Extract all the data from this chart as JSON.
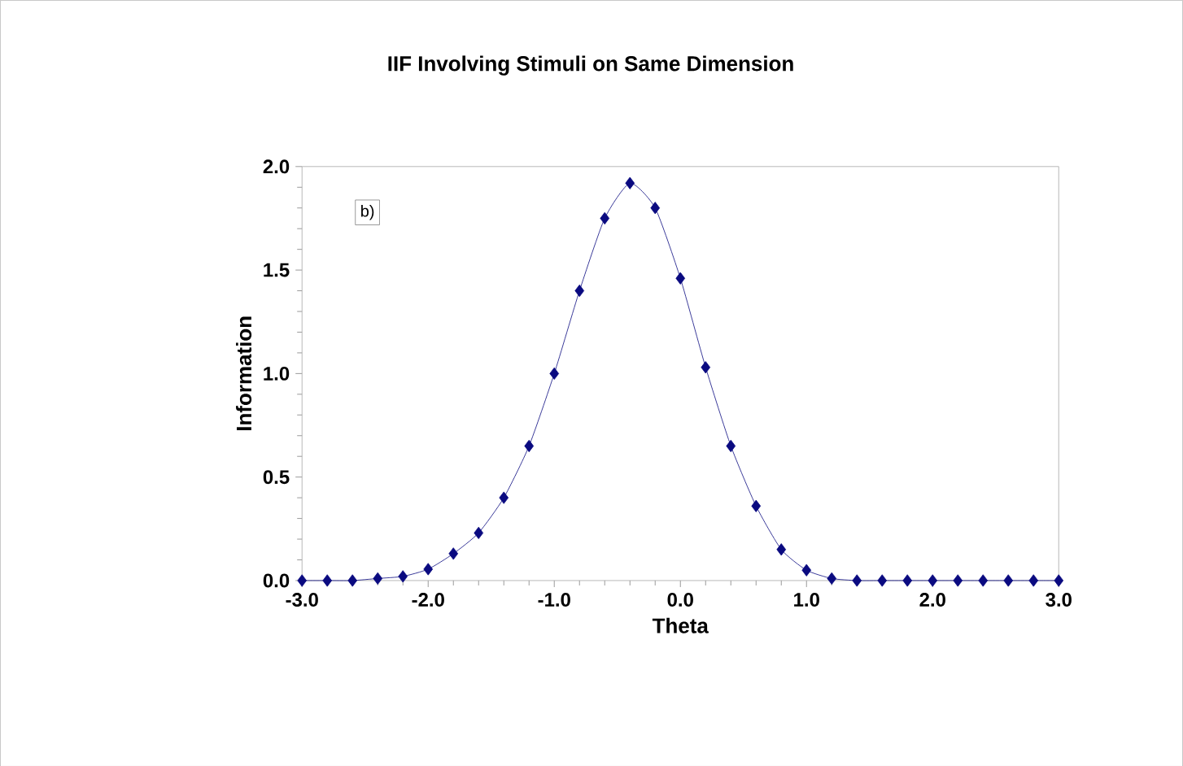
{
  "chart_data": {
    "type": "line",
    "title": "IIF Involving Stimuli on Same Dimension",
    "xlabel": "Theta",
    "ylabel": "Information",
    "annotations": [
      "b)"
    ],
    "x": [
      -3.0,
      -2.8,
      -2.6,
      -2.4,
      -2.2,
      -2.0,
      -1.8,
      -1.6,
      -1.4,
      -1.2,
      -1.0,
      -0.8,
      -0.6,
      -0.4,
      -0.2,
      0.0,
      0.2,
      0.4,
      0.6,
      0.8,
      1.0,
      1.2,
      1.4,
      1.6,
      1.8,
      2.0,
      2.2,
      2.4,
      2.6,
      2.8,
      3.0
    ],
    "series": [
      {
        "color": "#0a0a80",
        "values": [
          0,
          0,
          0,
          0.01,
          0.02,
          0.055,
          0.13,
          0.23,
          0.4,
          0.65,
          1.0,
          1.4,
          1.75,
          1.92,
          1.8,
          1.46,
          1.03,
          0.65,
          0.36,
          0.15,
          0.05,
          0.01,
          0,
          0,
          0,
          0,
          0,
          0,
          0,
          0,
          0
        ]
      }
    ],
    "xlim": [
      -3.0,
      3.0
    ],
    "ylim": [
      0,
      2.0
    ],
    "xticks": [
      {
        "value": -3,
        "label": "-3.0"
      },
      {
        "value": -2,
        "label": "-2.0"
      },
      {
        "value": -1,
        "label": "-1.0"
      },
      {
        "value": 0,
        "label": "0.0"
      },
      {
        "value": 1,
        "label": "1.0"
      },
      {
        "value": 2,
        "label": "2.0"
      },
      {
        "value": 3,
        "label": "3.0"
      }
    ],
    "yticks": [
      {
        "value": 0,
        "label": "0.0"
      },
      {
        "value": 0.5,
        "label": "0.5"
      },
      {
        "value": 1,
        "label": "1.0"
      },
      {
        "value": 1.5,
        "label": "1.5"
      },
      {
        "value": 2,
        "label": "2.0"
      }
    ],
    "grid": false,
    "marker": "diamond",
    "line_style": "solid"
  }
}
